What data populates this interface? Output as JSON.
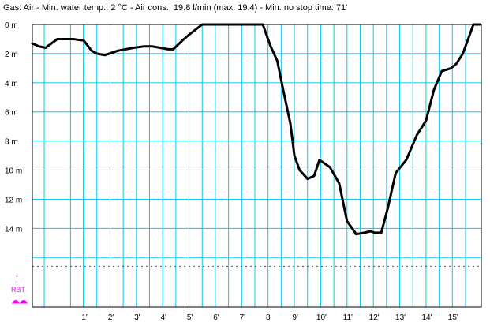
{
  "header": {
    "text": "Gas: Air  -  Min. water temp.: 2 °C  -  Air cons.: 19.8 l/min (max. 19.4)  -  Min. no stop time: 71'"
  },
  "colors": {
    "grid": "#00ccee",
    "profile": "#000000",
    "rbt_line": "#cc00cc",
    "rbt": "#ff00ff",
    "frame": "#000000"
  },
  "rbt": {
    "label": "RBT",
    "depth": 16.6,
    "icons": [
      "arrow-down-icon",
      "arrow-up-icon",
      "diver-icon"
    ]
  },
  "chart_data": {
    "type": "line",
    "title": "",
    "xlabel": "",
    "ylabel": "",
    "xlim": [
      -0.95,
      16.1
    ],
    "ylim": [
      0,
      19.4
    ],
    "y_inverted": true,
    "grid": true,
    "x_ticks": [
      {
        "value": 1,
        "label": "1'"
      },
      {
        "value": 2,
        "label": "2'"
      },
      {
        "value": 3,
        "label": "3'"
      },
      {
        "value": 4,
        "label": "4'"
      },
      {
        "value": 5,
        "label": "5'"
      },
      {
        "value": 6,
        "label": "6'"
      },
      {
        "value": 7,
        "label": "7'"
      },
      {
        "value": 8,
        "label": "8'"
      },
      {
        "value": 9,
        "label": "9'"
      },
      {
        "value": 10,
        "label": "10'"
      },
      {
        "value": 11,
        "label": "11'"
      },
      {
        "value": 12,
        "label": "12'"
      },
      {
        "value": 13,
        "label": "13'"
      },
      {
        "value": 14,
        "label": "14'"
      },
      {
        "value": 15,
        "label": "15'"
      }
    ],
    "x_grid_minor": [
      -0.5,
      0.5,
      1.5,
      2.5,
      3.5,
      4.5,
      5.5,
      6.5,
      7.5,
      8.5,
      9.5,
      10.5,
      11.5,
      12.5,
      13.5,
      14.5,
      15.5
    ],
    "y_ticks": [
      {
        "value": 0,
        "label": "0 m"
      },
      {
        "value": 2,
        "label": "2 m"
      },
      {
        "value": 4,
        "label": "4 m"
      },
      {
        "value": 6,
        "label": "6 m"
      },
      {
        "value": 8,
        "label": "8 m"
      },
      {
        "value": 10,
        "label": "10 m"
      },
      {
        "value": 12,
        "label": "12 m"
      },
      {
        "value": 14,
        "label": "14 m"
      }
    ],
    "y_grid_extra": [
      16
    ],
    "series": [
      {
        "x": [
          -0.95,
          -0.7,
          -0.45,
          -0.3,
          0.0,
          0.3,
          0.6,
          1.0,
          1.3,
          1.5,
          1.8,
          2.3,
          2.9,
          3.3,
          3.6,
          3.9,
          4.2,
          4.4,
          4.75,
          5.0,
          5.5,
          6.0,
          6.5,
          7.0,
          7.35,
          7.6,
          7.8,
          8.1,
          8.35,
          8.6,
          8.85,
          9.0,
          9.2,
          9.4,
          9.5,
          9.75,
          9.95,
          10.35,
          10.7,
          11.0,
          11.35,
          11.65,
          11.9,
          12.05,
          12.3,
          12.55,
          12.85,
          13.25,
          13.65,
          14.0,
          14.3,
          14.6,
          14.95,
          15.15,
          15.4,
          15.6,
          15.8,
          16.05
        ],
        "y": [
          1.3,
          1.5,
          1.6,
          1.4,
          1.0,
          1.0,
          1.0,
          1.1,
          1.8,
          2.0,
          2.1,
          1.8,
          1.6,
          1.5,
          1.5,
          1.6,
          1.7,
          1.7,
          1.1,
          0.7,
          0.0,
          0.0,
          0.0,
          0.0,
          0.0,
          0.0,
          0.0,
          1.5,
          2.5,
          4.7,
          6.8,
          9.0,
          10.0,
          10.4,
          10.6,
          10.4,
          9.3,
          9.8,
          10.9,
          13.5,
          14.4,
          14.3,
          14.2,
          14.3,
          14.3,
          12.6,
          10.2,
          9.3,
          7.6,
          6.6,
          4.5,
          3.2,
          3.0,
          2.7,
          2.0,
          1.0,
          0.0,
          0.0
        ]
      }
    ]
  }
}
